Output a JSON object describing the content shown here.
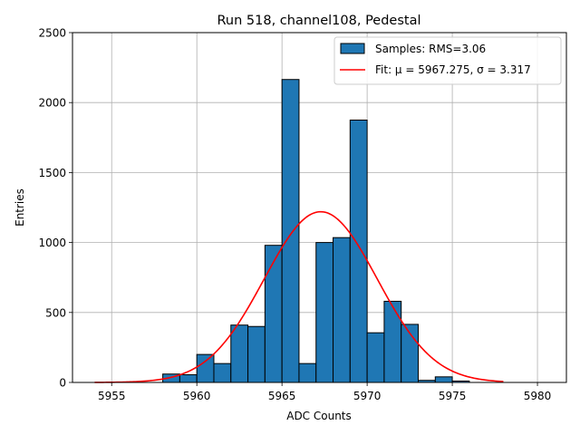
{
  "chart_data": {
    "type": "bar",
    "title": "Run 518, channel108, Pedestal",
    "xlabel": "ADC Counts",
    "ylabel": "Entries",
    "xlim": [
      5952.7,
      5981.7
    ],
    "ylim": [
      0,
      2500
    ],
    "xticks": [
      5955,
      5960,
      5965,
      5970,
      5975,
      5980
    ],
    "yticks": [
      0,
      500,
      1000,
      1500,
      2000,
      2500
    ],
    "grid": true,
    "legend_position": "top-right",
    "bin_width": 1,
    "bins": [
      {
        "left": 5958,
        "value": 60
      },
      {
        "left": 5959,
        "value": 55
      },
      {
        "left": 5960,
        "value": 200
      },
      {
        "left": 5961,
        "value": 135
      },
      {
        "left": 5962,
        "value": 410
      },
      {
        "left": 5963,
        "value": 400
      },
      {
        "left": 5964,
        "value": 980
      },
      {
        "left": 5965,
        "value": 2165
      },
      {
        "left": 5966,
        "value": 135
      },
      {
        "left": 5967,
        "value": 1000
      },
      {
        "left": 5968,
        "value": 1035
      },
      {
        "left": 5969,
        "value": 1875
      },
      {
        "left": 5970,
        "value": 355
      },
      {
        "left": 5971,
        "value": 580
      },
      {
        "left": 5972,
        "value": 415
      },
      {
        "left": 5973,
        "value": 15
      },
      {
        "left": 5974,
        "value": 40
      },
      {
        "left": 5975,
        "value": 10
      }
    ],
    "fit": {
      "mu": 5967.275,
      "sigma": 3.317,
      "amplitude": 1220,
      "x_range": [
        5954,
        5978
      ]
    },
    "legend": [
      {
        "label": "Samples: RMS=3.06",
        "kind": "hist"
      },
      {
        "label": "Fit: μ = 5967.275, σ = 3.317",
        "kind": "line"
      }
    ],
    "colors": {
      "bar_fill": "#1f77b4",
      "bar_edge": "#000000",
      "fit_line": "#ff0000",
      "grid": "#b0b0b0"
    }
  }
}
